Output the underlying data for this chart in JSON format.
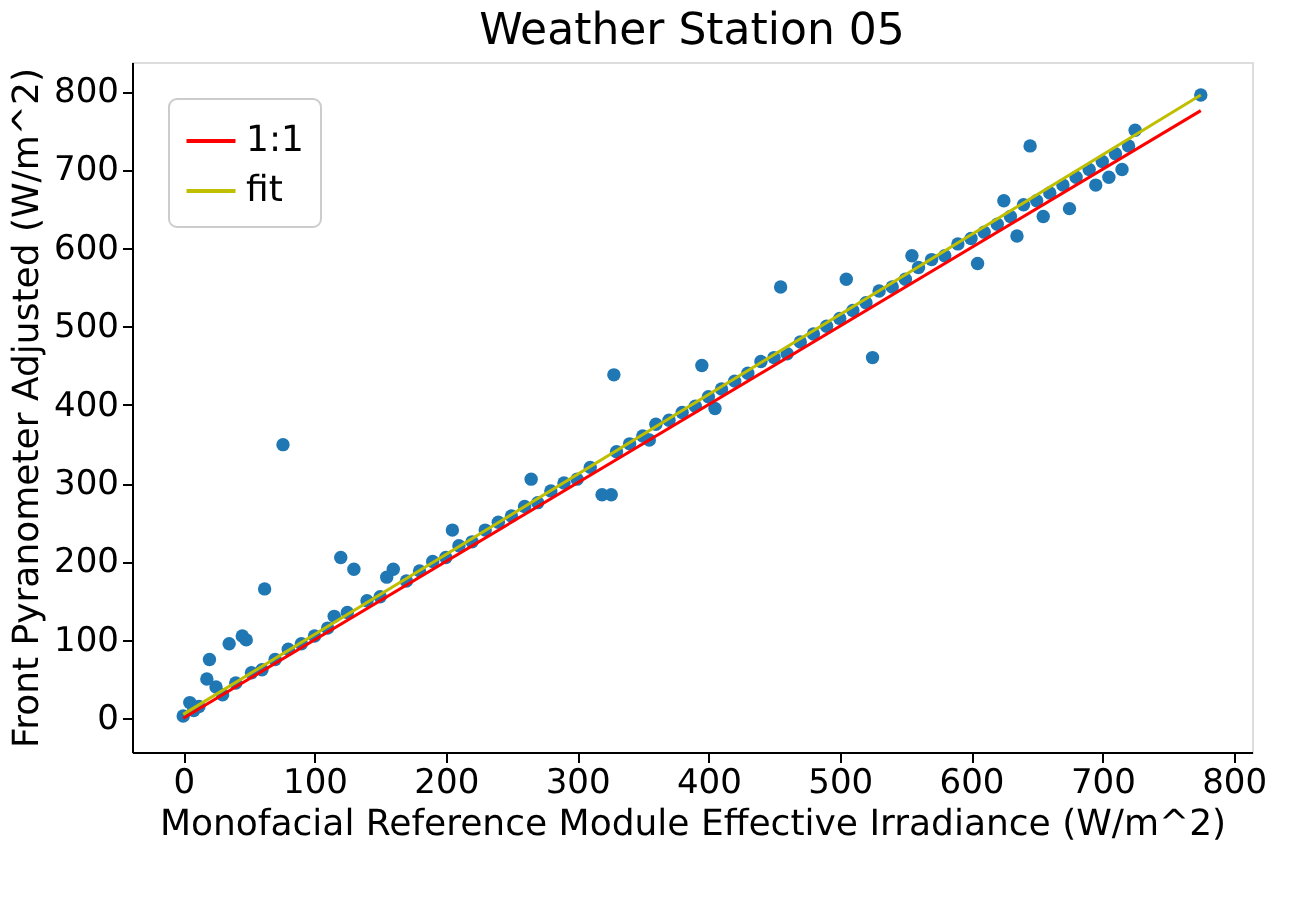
{
  "chart_data": {
    "type": "scatter",
    "title": "Weather Station 05",
    "xlabel": "Monofacial Reference Module Effective Irradiance (W/m^2)",
    "ylabel": "Front Pyranometer Adjusted (W/m^2)",
    "xlim": [
      -39,
      814
    ],
    "ylim": [
      -43,
      837
    ],
    "xticks": [
      0,
      100,
      200,
      300,
      400,
      500,
      600,
      700,
      800
    ],
    "yticks": [
      0,
      100,
      200,
      300,
      400,
      500,
      600,
      700,
      800
    ],
    "grid": false,
    "legend": "top left",
    "series": [
      {
        "marker": "circle",
        "color": "#1f77b4",
        "x": [
          0,
          5,
          8,
          12,
          18,
          20,
          25,
          30,
          35,
          40,
          45,
          48,
          52,
          60,
          62,
          70,
          76,
          80,
          90,
          100,
          110,
          115,
          120,
          125,
          130,
          140,
          150,
          155,
          160,
          170,
          180,
          190,
          200,
          205,
          210,
          220,
          230,
          240,
          250,
          260,
          265,
          270,
          280,
          290,
          300,
          310,
          319,
          326,
          328,
          330,
          340,
          350,
          355,
          360,
          370,
          380,
          390,
          395,
          400,
          405,
          410,
          420,
          430,
          440,
          450,
          455,
          460,
          470,
          480,
          490,
          500,
          505,
          510,
          520,
          525,
          530,
          540,
          550,
          555,
          560,
          570,
          580,
          590,
          600,
          605,
          610,
          620,
          625,
          630,
          635,
          640,
          645,
          650,
          655,
          660,
          670,
          675,
          680,
          690,
          695,
          700,
          705,
          710,
          715,
          720,
          725,
          775
        ],
        "values": [
          3,
          20,
          10,
          15,
          50,
          75,
          40,
          30,
          95,
          45,
          105,
          100,
          58,
          62,
          165,
          75,
          349,
          88,
          95,
          105,
          115,
          130,
          205,
          135,
          190,
          150,
          155,
          180,
          190,
          175,
          188,
          200,
          205,
          240,
          220,
          225,
          240,
          250,
          258,
          270,
          305,
          275,
          290,
          300,
          305,
          320,
          285,
          285,
          438,
          340,
          350,
          360,
          355,
          375,
          380,
          390,
          398,
          450,
          410,
          395,
          420,
          430,
          440,
          455,
          460,
          550,
          465,
          480,
          490,
          500,
          510,
          560,
          520,
          530,
          460,
          545,
          550,
          560,
          590,
          575,
          585,
          590,
          605,
          612,
          580,
          620,
          630,
          660,
          640,
          615,
          655,
          730,
          660,
          640,
          670,
          680,
          650,
          690,
          700,
          680,
          710,
          690,
          720,
          700,
          730,
          750,
          795
        ]
      },
      {
        "type": "line",
        "marker": "none",
        "line_style": "solid",
        "name": "1:1",
        "color": "#ff0000",
        "x": [
          0,
          775
        ],
        "values": [
          0,
          775
        ]
      },
      {
        "type": "line",
        "marker": "none",
        "line_style": "solid",
        "name": "fit",
        "color": "#bfbf00",
        "x": [
          0,
          775
        ],
        "values": [
          5,
          795
        ]
      }
    ]
  }
}
